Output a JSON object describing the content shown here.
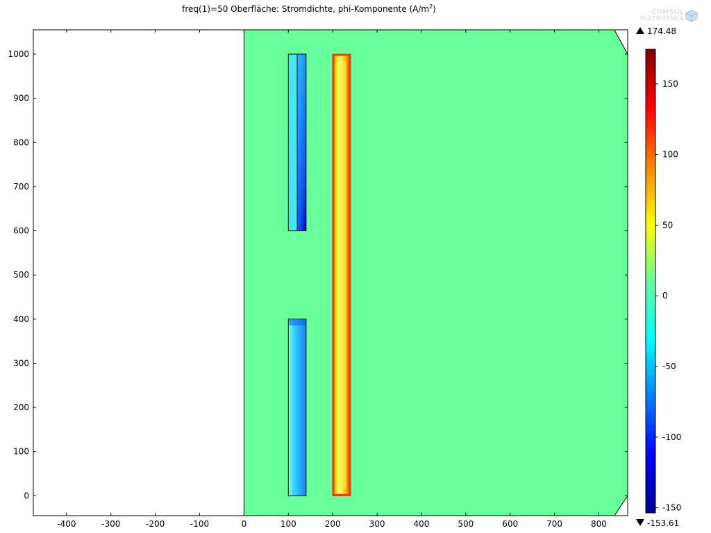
{
  "title": {
    "prefix": "freq(1)=50   Oberfläche: Stromdichte, phi-Komponente (A/m",
    "superscript": "2",
    "suffix": ")"
  },
  "logo": {
    "line1": "COMSOL",
    "line2": "MULTIPHYSICS",
    "icon": "cube-icon"
  },
  "chart_data": {
    "type": "heatmap",
    "title": "freq(1)=50   Oberfläche: Stromdichte, phi-Komponente (A/m2)",
    "xlim": [
      -475,
      865
    ],
    "ylim": [
      -45,
      1055
    ],
    "xticks": [
      -400,
      -300,
      -200,
      -100,
      0,
      100,
      200,
      300,
      400,
      500,
      600,
      700,
      800
    ],
    "yticks": [
      0,
      100,
      200,
      300,
      400,
      500,
      600,
      700,
      800,
      900,
      1000
    ],
    "domain": {
      "description_free": true,
      "outline": [
        [
          0,
          -45
        ],
        [
          835,
          -45
        ],
        [
          865,
          0
        ],
        [
          865,
          1000
        ],
        [
          835,
          1055
        ],
        [
          0,
          1055
        ]
      ],
      "background_value": 0
    },
    "regions": [
      {
        "name": "coil-upper",
        "x": [
          100,
          140
        ],
        "y": [
          600,
          1000
        ],
        "inner_line_x": 120,
        "value_low": -40,
        "value_high": -140
      },
      {
        "name": "coil-lower",
        "x": [
          100,
          140
        ],
        "y": [
          0,
          400
        ],
        "value_low": -40,
        "value_high": -90
      },
      {
        "name": "conductor-right",
        "x": [
          200,
          240
        ],
        "y": [
          0,
          1000
        ],
        "value_edge": 150,
        "value_inner": 50
      }
    ],
    "colorbar": {
      "min": -153.61,
      "max": 174.48,
      "min_label": "-153.61",
      "max_label": "174.48",
      "ticks": [
        150,
        100,
        50,
        0,
        -50,
        -100,
        -150
      ],
      "colormap": "jet"
    },
    "grid": false
  }
}
